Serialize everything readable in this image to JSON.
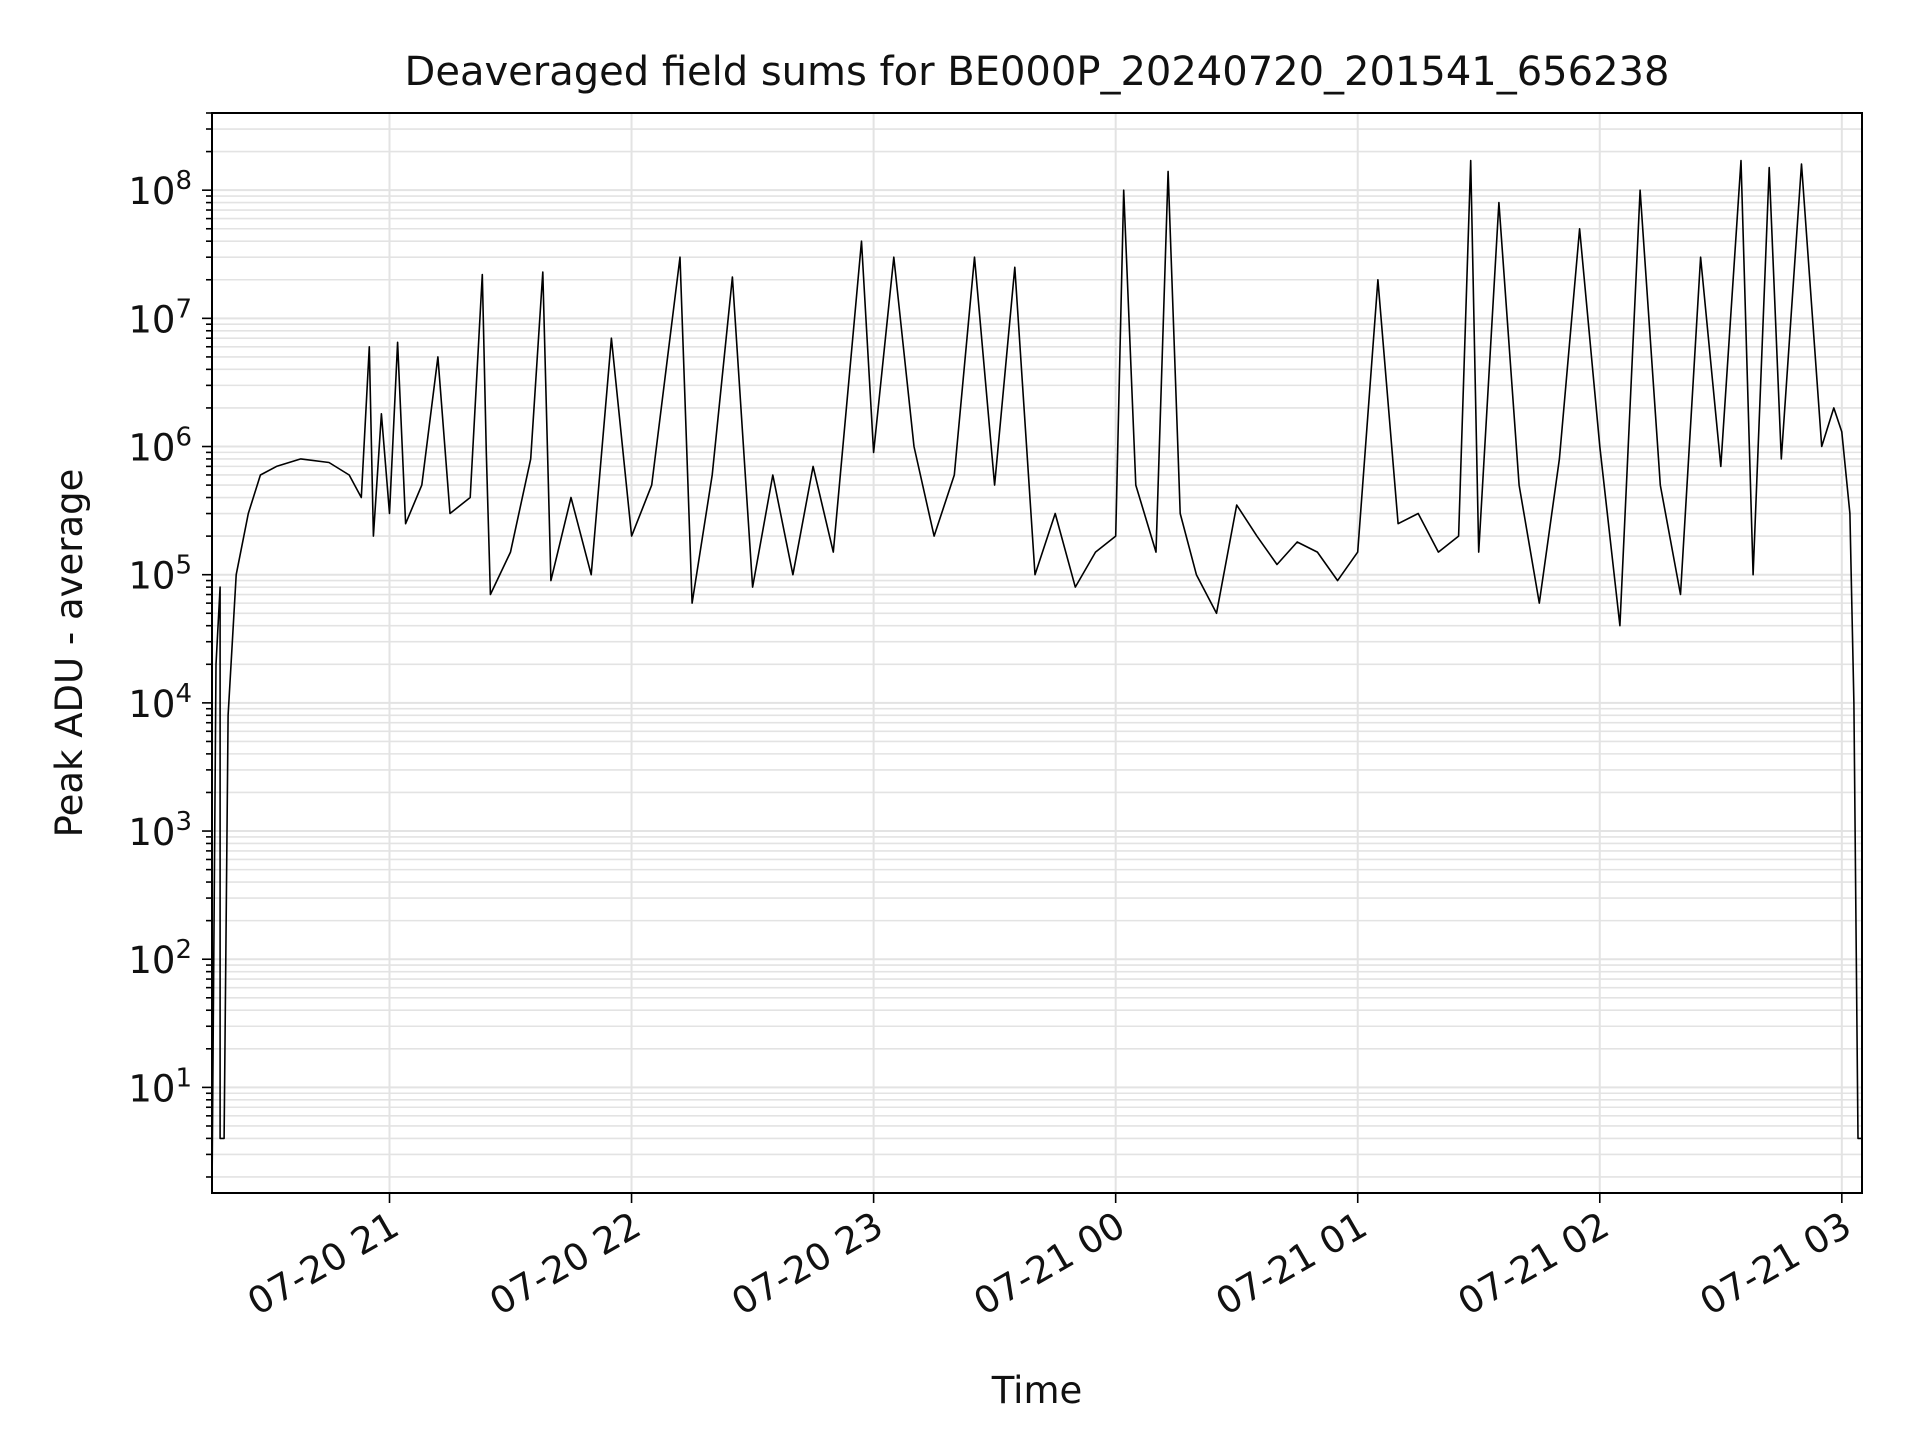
{
  "chart_data": {
    "type": "line",
    "title": "Deaveraged field sums for BE000P_20240720_201541_656238",
    "xlabel": "Time",
    "ylabel": "Peak ADU - average",
    "y_scale": "log",
    "ylim": [
      1.5,
      400000000
    ],
    "xlim": [
      "07-20 20:16",
      "07-21 03:05"
    ],
    "grid": true,
    "x_tick_labels": [
      "07-20 21",
      "07-20 22",
      "07-20 23",
      "07-21 00",
      "07-21 01",
      "07-21 02",
      "07-21 03"
    ],
    "y_tick_labels": [
      {
        "base": "10",
        "exp": "1"
      },
      {
        "base": "10",
        "exp": "2"
      },
      {
        "base": "10",
        "exp": "3"
      },
      {
        "base": "10",
        "exp": "4"
      },
      {
        "base": "10",
        "exp": "5"
      },
      {
        "base": "10",
        "exp": "6"
      },
      {
        "base": "10",
        "exp": "7"
      },
      {
        "base": "10",
        "exp": "8"
      }
    ],
    "series": [
      {
        "color": "#000000",
        "points": [
          [
            "07-20 20:16",
            1.5
          ],
          [
            "07-20 20:17",
            20000
          ],
          [
            "07-20 20:18",
            80000
          ],
          [
            "07-20 20:18",
            4
          ],
          [
            "07-20 20:19",
            4
          ],
          [
            "07-20 20:20",
            8000
          ],
          [
            "07-20 20:22",
            100000
          ],
          [
            "07-20 20:25",
            300000
          ],
          [
            "07-20 20:28",
            600000
          ],
          [
            "07-20 20:32",
            700000
          ],
          [
            "07-20 20:38",
            800000
          ],
          [
            "07-20 20:45",
            750000
          ],
          [
            "07-20 20:50",
            600000
          ],
          [
            "07-20 20:53",
            400000
          ],
          [
            "07-20 20:55",
            6000000
          ],
          [
            "07-20 20:56",
            200000
          ],
          [
            "07-20 20:58",
            1800000
          ],
          [
            "07-20 21:00",
            300000
          ],
          [
            "07-20 21:02",
            6500000
          ],
          [
            "07-20 21:04",
            250000
          ],
          [
            "07-20 21:08",
            500000
          ],
          [
            "07-20 21:12",
            5000000
          ],
          [
            "07-20 21:15",
            300000
          ],
          [
            "07-20 21:20",
            400000
          ],
          [
            "07-20 21:23",
            22000000
          ],
          [
            "07-20 21:24",
            900000
          ],
          [
            "07-20 21:25",
            70000
          ],
          [
            "07-20 21:30",
            150000
          ],
          [
            "07-20 21:35",
            800000
          ],
          [
            "07-20 21:38",
            23000000
          ],
          [
            "07-20 21:40",
            90000
          ],
          [
            "07-20 21:45",
            400000
          ],
          [
            "07-20 21:50",
            100000
          ],
          [
            "07-20 21:55",
            7000000
          ],
          [
            "07-20 22:00",
            200000
          ],
          [
            "07-20 22:05",
            500000
          ],
          [
            "07-20 22:12",
            30000000
          ],
          [
            "07-20 22:15",
            60000
          ],
          [
            "07-20 22:20",
            600000
          ],
          [
            "07-20 22:25",
            21000000
          ],
          [
            "07-20 22:30",
            80000
          ],
          [
            "07-20 22:35",
            600000
          ],
          [
            "07-20 22:40",
            100000
          ],
          [
            "07-20 22:45",
            700000
          ],
          [
            "07-20 22:50",
            150000
          ],
          [
            "07-20 22:55",
            8000000
          ],
          [
            "07-20 22:57",
            40000000
          ],
          [
            "07-20 23:00",
            900000
          ],
          [
            "07-20 23:05",
            30000000
          ],
          [
            "07-20 23:10",
            1000000
          ],
          [
            "07-20 23:15",
            200000
          ],
          [
            "07-20 23:20",
            600000
          ],
          [
            "07-20 23:25",
            30000000
          ],
          [
            "07-20 23:30",
            500000
          ],
          [
            "07-20 23:35",
            25000000
          ],
          [
            "07-20 23:40",
            100000
          ],
          [
            "07-20 23:45",
            300000
          ],
          [
            "07-20 23:50",
            80000
          ],
          [
            "07-20 23:55",
            150000
          ],
          [
            "07-21 00:00",
            200000
          ],
          [
            "07-21 00:02",
            100000000
          ],
          [
            "07-21 00:05",
            500000
          ],
          [
            "07-21 00:10",
            150000
          ],
          [
            "07-21 00:13",
            140000000
          ],
          [
            "07-21 00:16",
            300000
          ],
          [
            "07-21 00:20",
            100000
          ],
          [
            "07-21 00:25",
            50000
          ],
          [
            "07-21 00:30",
            350000
          ],
          [
            "07-21 00:35",
            200000
          ],
          [
            "07-21 00:40",
            120000
          ],
          [
            "07-21 00:45",
            180000
          ],
          [
            "07-21 00:50",
            150000
          ],
          [
            "07-21 00:55",
            90000
          ],
          [
            "07-21 01:00",
            150000
          ],
          [
            "07-21 01:05",
            20000000
          ],
          [
            "07-21 01:10",
            250000
          ],
          [
            "07-21 01:15",
            300000
          ],
          [
            "07-21 01:20",
            150000
          ],
          [
            "07-21 01:25",
            200000
          ],
          [
            "07-21 01:28",
            170000000
          ],
          [
            "07-21 01:30",
            150000
          ],
          [
            "07-21 01:35",
            80000000
          ],
          [
            "07-21 01:40",
            500000
          ],
          [
            "07-21 01:45",
            60000
          ],
          [
            "07-21 01:50",
            800000
          ],
          [
            "07-21 01:55",
            50000000
          ],
          [
            "07-21 02:00",
            1000000
          ],
          [
            "07-21 02:05",
            40000
          ],
          [
            "07-21 02:10",
            100000000
          ],
          [
            "07-21 02:15",
            500000
          ],
          [
            "07-21 02:20",
            70000
          ],
          [
            "07-21 02:25",
            30000000
          ],
          [
            "07-21 02:30",
            700000
          ],
          [
            "07-21 02:35",
            170000000
          ],
          [
            "07-21 02:38",
            100000
          ],
          [
            "07-21 02:42",
            150000000
          ],
          [
            "07-21 02:45",
            800000
          ],
          [
            "07-21 02:50",
            160000000
          ],
          [
            "07-21 02:55",
            1000000
          ],
          [
            "07-21 02:58",
            2000000
          ],
          [
            "07-21 03:00",
            1300000
          ],
          [
            "07-21 03:02",
            300000
          ],
          [
            "07-21 03:03",
            10000
          ],
          [
            "07-21 03:04",
            4
          ],
          [
            "07-21 03:05",
            4
          ]
        ]
      }
    ]
  }
}
